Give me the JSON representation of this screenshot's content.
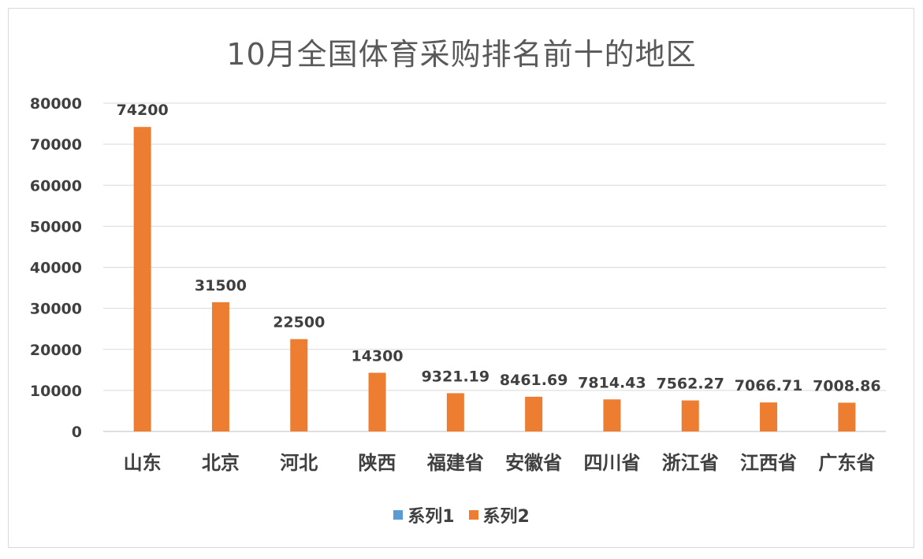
{
  "chart_data": {
    "type": "bar",
    "title": "10月全国体育采购排名前十的地区",
    "xlabel": "",
    "ylabel": "",
    "categories": [
      "山东",
      "北京",
      "河北",
      "陕西",
      "福建省",
      "安徽省",
      "四川省",
      "浙江省",
      "江西省",
      "广东省"
    ],
    "series": [
      {
        "name": "系列1",
        "values": [
          0,
          0,
          0,
          0,
          0,
          0,
          0,
          0,
          0,
          0
        ]
      },
      {
        "name": "系列2",
        "values": [
          74200,
          31500,
          22500,
          14300,
          9321.19,
          8461.69,
          7814.43,
          7562.27,
          7066.71,
          7008.86
        ]
      }
    ],
    "data_labels": [
      "74200",
      "31500",
      "22500",
      "14300",
      "9321.19",
      "8461.69",
      "7814.43",
      "7562.27",
      "7066.71",
      "7008.86"
    ],
    "ylim": [
      0,
      80000
    ],
    "yticks": [
      0,
      10000,
      20000,
      30000,
      40000,
      50000,
      60000,
      70000,
      80000
    ],
    "grid": true,
    "legend_position": "bottom",
    "colors": {
      "series1": "#5b9bd5",
      "series2": "#ed7d31",
      "grid": "#d9d9d9",
      "axis": "#bfbfbf"
    }
  }
}
